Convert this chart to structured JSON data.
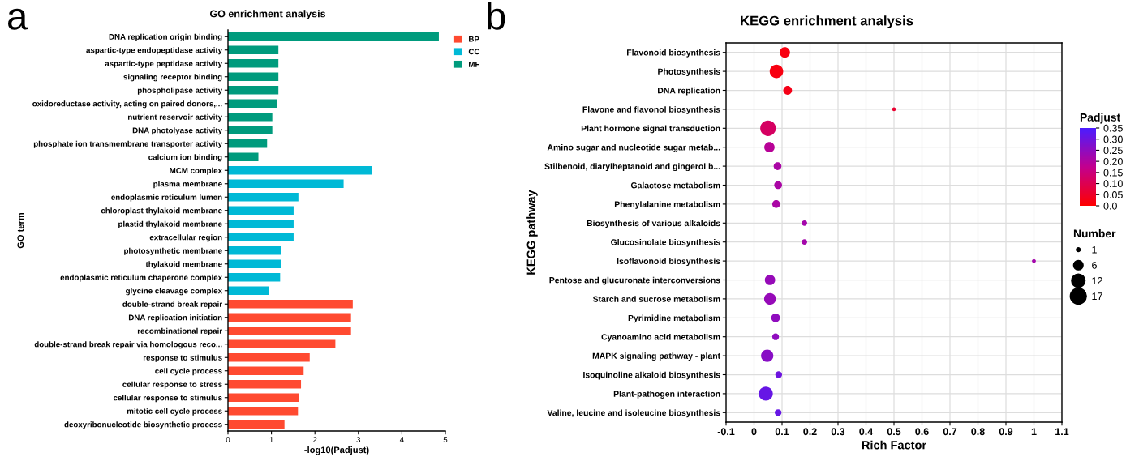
{
  "chart_data": [
    {
      "type": "bar",
      "orientation": "horizontal",
      "title": "GO enrichment analysis",
      "xlabel": "-log10(Padjust)",
      "ylabel": "GO term",
      "categories": [
        "DNA replication origin binding",
        "aspartic-type endopeptidase activity",
        "aspartic-type peptidase activity",
        "signaling receptor binding",
        "phospholipase activity",
        "oxidoreductase activity, acting on paired donors,...",
        "nutrient reservoir activity",
        "DNA photolyase activity",
        "phosphate ion transmembrane transporter activity",
        "calcium ion binding",
        "MCM complex",
        "plasma membrane",
        "endoplasmic reticulum lumen",
        "chloroplast thylakoid membrane",
        "plastid thylakoid membrane",
        "extracellular region",
        "photosynthetic membrane",
        "thylakoid membrane",
        "endoplasmic reticulum chaperone complex",
        "glycine cleavage complex",
        "double-strand break repair",
        "DNA replication initiation",
        "recombinational repair",
        "double-strand break repair via homologous reco...",
        "response to stimulus",
        "cell cycle process",
        "cellular response to stress",
        "cellular response to stimulus",
        "mitotic cell cycle process",
        "deoxyribonucleotide biosynthetic process"
      ],
      "series": [
        {
          "name": "BP",
          "color": "#ff4a30",
          "values": [
            null,
            null,
            null,
            null,
            null,
            null,
            null,
            null,
            null,
            null,
            null,
            null,
            null,
            null,
            null,
            null,
            null,
            null,
            null,
            null,
            2.87,
            2.83,
            2.83,
            2.47,
            1.88,
            1.74,
            1.68,
            1.63,
            1.61,
            1.3
          ]
        },
        {
          "name": "CC",
          "color": "#00b9d6",
          "values": [
            null,
            null,
            null,
            null,
            null,
            null,
            null,
            null,
            null,
            null,
            3.32,
            2.66,
            1.62,
            1.51,
            1.51,
            1.51,
            1.22,
            1.22,
            1.2,
            0.94,
            null,
            null,
            null,
            null,
            null,
            null,
            null,
            null,
            null,
            null
          ]
        },
        {
          "name": "MF",
          "color": "#009b7d",
          "values": [
            4.85,
            1.16,
            1.16,
            1.16,
            1.16,
            1.13,
            1.02,
            1.02,
            0.9,
            0.7,
            null,
            null,
            null,
            null,
            null,
            null,
            null,
            null,
            null,
            null,
            null,
            null,
            null,
            null,
            null,
            null,
            null,
            null,
            null,
            null
          ]
        }
      ],
      "xlim": [
        0,
        5
      ],
      "xticks": [
        0,
        1,
        2,
        3,
        4,
        5
      ],
      "legend": "top right",
      "annotations": [
        "a"
      ]
    },
    {
      "type": "bubble",
      "orientation": "horizontal",
      "title": "KEGG enrichment analysis",
      "xlabel": "Rich Factor",
      "ylabel": "KEGG pathway",
      "clabel": "Padjust",
      "legend_title": "Number",
      "categories": [
        "Flavonoid biosynthesis",
        "Photosynthesis",
        "DNA replication",
        "Flavone and flavonol biosynthesis",
        "Plant hormone signal transduction",
        "Amino sugar and nucleotide sugar metab...",
        "Stilbenoid, diarylheptanoid and gingerol b...",
        "Galactose metabolism",
        "Phenylalanine metabolism",
        "Biosynthesis of various alkaloids",
        "Glucosinolate biosynthesis",
        "Isoflavonoid biosynthesis",
        "Pentose and glucuronate interconversions",
        "Starch and sucrose metabolism",
        "Pyrimidine metabolism",
        "Cyanoamino acid metabolism",
        "MAPK signaling pathway - plant",
        "Isoquinoline alkaloid biosynthesis",
        "Plant-pathogen interaction",
        "Valine, leucine and isoleucine biosynthesis"
      ],
      "values": [
        0.11,
        0.08,
        0.12,
        0.5,
        0.05,
        0.055,
        0.084,
        0.086,
        0.079,
        0.18,
        0.18,
        1.0,
        0.057,
        0.057,
        0.077,
        0.077,
        0.047,
        0.088,
        0.042,
        0.086
      ],
      "sizes": [
        7,
        12,
        5,
        1,
        16,
        7,
        4,
        4,
        4,
        2,
        2,
        1,
        7,
        9,
        5,
        3,
        10,
        3,
        13,
        3
      ],
      "cvalues": [
        0.02,
        0.02,
        0.03,
        0.06,
        0.12,
        0.19,
        0.21,
        0.21,
        0.21,
        0.22,
        0.22,
        0.22,
        0.24,
        0.24,
        0.25,
        0.25,
        0.26,
        0.3,
        0.31,
        0.31
      ],
      "size_legend": [
        1,
        6,
        12,
        17
      ],
      "clim": [
        0,
        0.35
      ],
      "cticks": [
        {
          "value": 0,
          "label": "0.0"
        },
        0.05,
        {
          "value": 0.1,
          "label": "0.10"
        },
        0.15,
        {
          "value": 0.2,
          "label": "0.20"
        },
        0.25,
        {
          "value": 0.3,
          "label": "0.30"
        },
        0.35
      ],
      "xlim": [
        -0.1,
        1.1
      ],
      "xticks": [
        -0.1,
        0,
        0.1,
        0.2,
        0.3,
        0.4,
        0.5,
        0.6,
        0.7,
        0.8,
        0.9,
        1,
        1.1
      ],
      "grid": true,
      "annotations": [
        "b"
      ]
    }
  ]
}
